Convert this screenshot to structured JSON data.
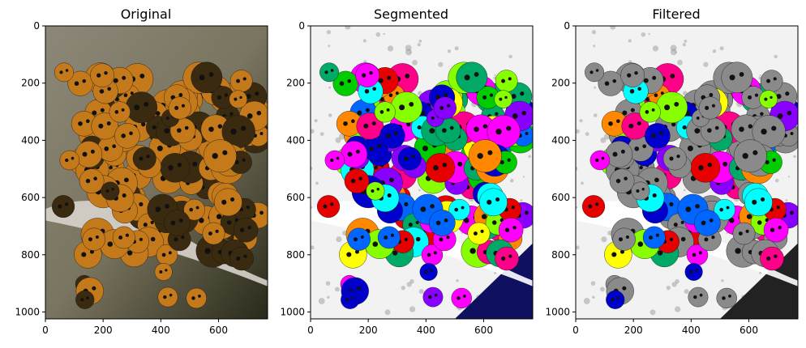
{
  "panels": [
    {
      "id": "original",
      "title": "Original"
    },
    {
      "id": "segmented",
      "title": "Segmented"
    },
    {
      "id": "filtered",
      "title": "Filtered"
    }
  ],
  "axes": {
    "x_ticks": [
      0,
      200,
      400,
      600
    ],
    "y_ticks": [
      0,
      200,
      400,
      600,
      800,
      1000
    ],
    "x_range": [
      0,
      770
    ],
    "y_range": [
      0,
      1024
    ]
  },
  "colors": {
    "frame": "#000000",
    "original_bg": "#7a7560",
    "original_shadow": "#2a2a1a",
    "beetle_orange": "#c47a1a",
    "beetle_dark": "#3a2a10",
    "segment_palette": [
      "#e60000",
      "#00cc00",
      "#0066ff",
      "#ff00ff",
      "#00ffff",
      "#ffff00",
      "#ff8800",
      "#8800ff",
      "#00aa66",
      "#ff0088",
      "#88ff00",
      "#0000cc"
    ]
  }
}
